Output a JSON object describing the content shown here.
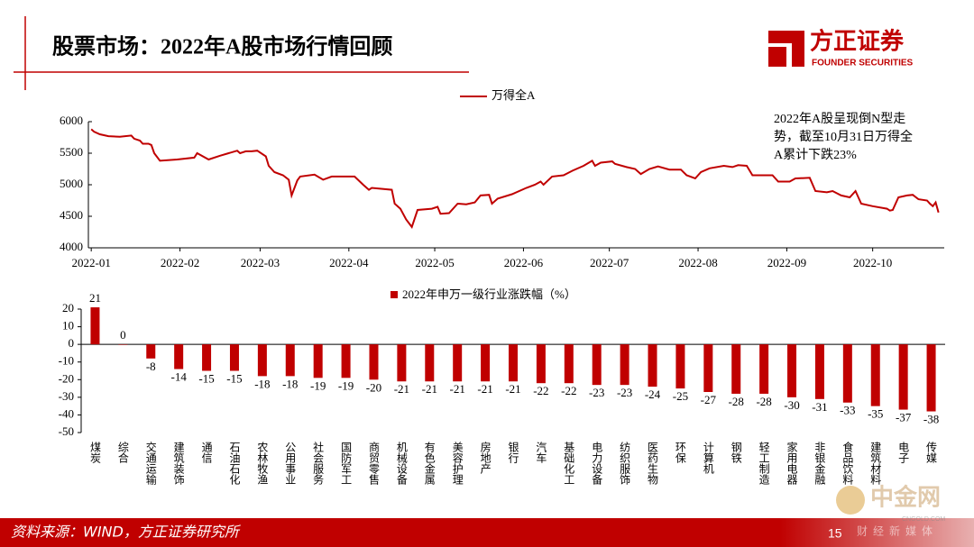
{
  "header": {
    "title": "股票市场：2022年A股市场行情回顾",
    "logo_name": "方正证券",
    "logo_sub": "FOUNDER SECURITIES"
  },
  "chart_data": [
    {
      "type": "line",
      "annotation_lines": [
        "2022年A股呈现倒N型走",
        "势，截至10月31日万得全",
        "A累计下跌23%"
      ],
      "x": [
        0,
        1,
        3,
        6,
        10,
        14,
        15,
        17,
        18,
        20,
        21,
        22,
        24,
        30,
        36,
        37,
        41,
        45,
        48,
        51,
        52,
        54,
        56,
        58,
        61,
        62,
        64,
        67,
        69,
        70,
        72,
        73,
        78,
        81,
        84,
        92,
        95,
        97,
        98,
        105,
        106,
        108,
        110,
        112,
        114,
        119,
        121,
        122,
        125,
        128,
        131,
        134,
        136,
        139,
        140,
        142,
        147,
        152,
        155,
        157,
        158,
        161,
        165,
        168,
        172,
        175,
        176,
        178,
        182,
        183,
        187,
        190,
        192,
        195,
        198,
        202,
        206,
        208,
        211,
        213,
        216,
        221,
        224,
        226,
        229,
        231,
        238,
        240,
        244,
        246,
        251,
        253,
        257,
        259,
        262,
        265,
        267,
        269,
        273,
        278,
        279,
        280,
        282,
        285,
        287,
        289,
        292,
        293,
        294,
        295,
        296
      ],
      "series": [
        {
          "name": "万得全A",
          "color": "#c00000",
          "values": [
            5880,
            5840,
            5800,
            5770,
            5760,
            5780,
            5730,
            5700,
            5650,
            5650,
            5630,
            5500,
            5380,
            5400,
            5430,
            5500,
            5400,
            5460,
            5500,
            5540,
            5500,
            5530,
            5530,
            5540,
            5450,
            5300,
            5200,
            5150,
            5080,
            4830,
            5070,
            5130,
            5160,
            5080,
            5130,
            5130,
            5000,
            4920,
            4950,
            4920,
            4700,
            4620,
            4450,
            4330,
            4600,
            4620,
            4650,
            4540,
            4550,
            4700,
            4690,
            4720,
            4830,
            4840,
            4700,
            4780,
            4850,
            4950,
            5000,
            5050,
            5000,
            5130,
            5150,
            5220,
            5300,
            5380,
            5300,
            5350,
            5370,
            5330,
            5280,
            5250,
            5170,
            5250,
            5290,
            5240,
            5240,
            5150,
            5100,
            5200,
            5260,
            5300,
            5280,
            5310,
            5300,
            5150,
            5150,
            5050,
            5050,
            5100,
            5110,
            4900,
            4880,
            4900,
            4830,
            4800,
            4900,
            4700,
            4660,
            4620,
            4590,
            4600,
            4800,
            4830,
            4840,
            4770,
            4750,
            4700,
            4660,
            4720,
            4560
          ]
        }
      ],
      "xlim": [
        -1,
        298
      ],
      "xticks": [
        {
          "value": 0,
          "label": "2022-01"
        },
        {
          "value": 31,
          "label": "2022-02"
        },
        {
          "value": 59,
          "label": "2022-03"
        },
        {
          "value": 90,
          "label": "2022-04"
        },
        {
          "value": 120,
          "label": "2022-05"
        },
        {
          "value": 151,
          "label": "2022-06"
        },
        {
          "value": 181,
          "label": "2022-07"
        },
        {
          "value": 212,
          "label": "2022-08"
        },
        {
          "value": 243,
          "label": "2022-09"
        },
        {
          "value": 273,
          "label": "2022-10"
        }
      ],
      "ylim": [
        4000,
        6000
      ],
      "yticks": [
        4000,
        4500,
        5000,
        5500,
        6000
      ]
    },
    {
      "type": "bar",
      "categories": [
        "煤炭",
        "综合",
        "交通运输",
        "建筑装饰",
        "通信",
        "石油石化",
        "农林牧渔",
        "公用事业",
        "社会服务",
        "国防军工",
        "商贸零售",
        "机械设备",
        "有色金属",
        "美容护理",
        "房地产",
        "银行",
        "汽车",
        "基础化工",
        "电力设备",
        "纺织服饰",
        "医药生物",
        "环保",
        "计算机",
        "钢铁",
        "轻工制造",
        "家用电器",
        "非银金融",
        "食品饮料",
        "建筑材料",
        "电子",
        "传媒"
      ],
      "series": [
        {
          "name": "2022年申万一级行业涨跌幅（%）",
          "color": "#c00000",
          "values": [
            21,
            0,
            -8,
            -14,
            -15,
            -15,
            -18,
            -18,
            -19,
            -19,
            -20,
            -21,
            -21,
            -21,
            -21,
            -21,
            -22,
            -22,
            -23,
            -23,
            -24,
            -25,
            -27,
            -28,
            -28,
            -30,
            -31,
            -33,
            -35,
            -37,
            -38
          ]
        }
      ],
      "ylim": [
        -50,
        20
      ],
      "yticks": [
        -50,
        -40,
        -30,
        -20,
        -10,
        0,
        10,
        20
      ]
    }
  ],
  "footer": {
    "source": "资料来源：WIND，方正证券研究所",
    "page": "15"
  },
  "watermark": {
    "name": "中金网",
    "url": "CNGOLD.COM",
    "slogan": "财经新媒体"
  }
}
